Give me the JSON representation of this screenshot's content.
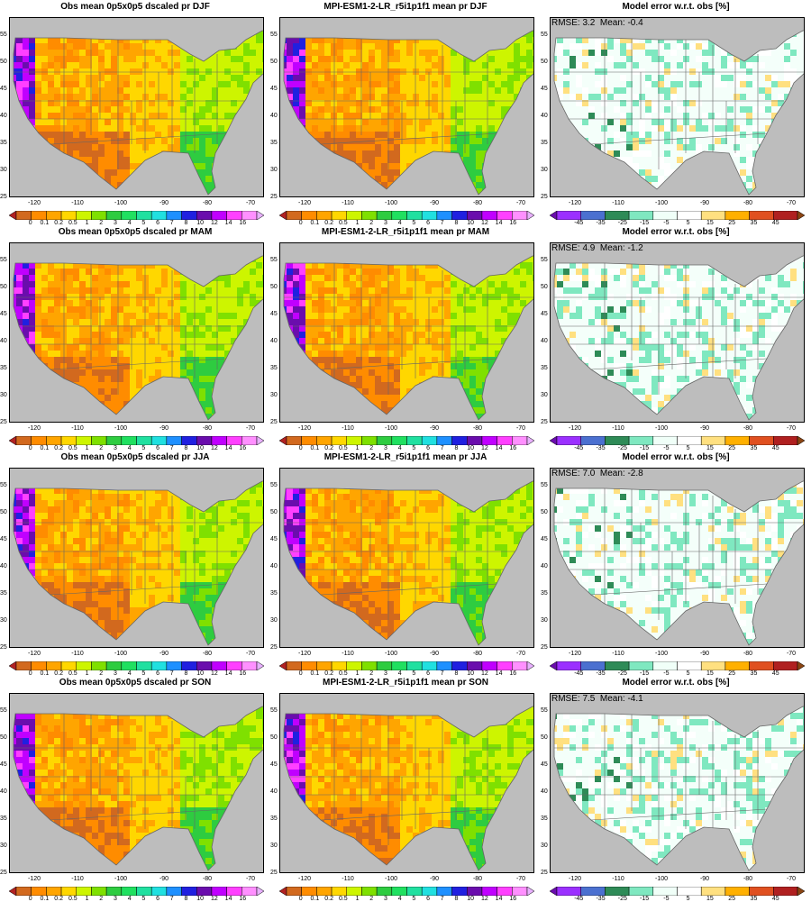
{
  "panels": [
    {
      "row": 0,
      "col": 0,
      "kind": "obs",
      "title": "Obs mean 0p5x0p5 dscaled pr DJF",
      "stats": ""
    },
    {
      "row": 0,
      "col": 1,
      "kind": "model",
      "title": "MPI-ESM1-2-LR_r5i1p1f1 mean pr DJF",
      "stats": ""
    },
    {
      "row": 0,
      "col": 2,
      "kind": "error",
      "title": "Model error w.r.t. obs [%]",
      "stats": "RMSE: 3.2  Mean: -0.4"
    },
    {
      "row": 1,
      "col": 0,
      "kind": "obs",
      "title": "Obs mean 0p5x0p5 dscaled pr MAM",
      "stats": ""
    },
    {
      "row": 1,
      "col": 1,
      "kind": "model",
      "title": "MPI-ESM1-2-LR_r5i1p1f1 mean pr MAM",
      "stats": ""
    },
    {
      "row": 1,
      "col": 2,
      "kind": "error",
      "title": "Model error w.r.t. obs [%]",
      "stats": "RMSE: 4.9  Mean: -1.2"
    },
    {
      "row": 2,
      "col": 0,
      "kind": "obs",
      "title": "Obs mean 0p5x0p5 dscaled pr JJA",
      "stats": ""
    },
    {
      "row": 2,
      "col": 1,
      "kind": "model",
      "title": "MPI-ESM1-2-LR_r5i1p1f1 mean pr JJA",
      "stats": ""
    },
    {
      "row": 2,
      "col": 2,
      "kind": "error",
      "title": "Model error w.r.t. obs [%]",
      "stats": "RMSE: 7.0  Mean: -2.8"
    },
    {
      "row": 3,
      "col": 0,
      "kind": "obs",
      "title": "Obs mean 0p5x0p5 dscaled pr SON",
      "stats": ""
    },
    {
      "row": 3,
      "col": 1,
      "kind": "model",
      "title": "MPI-ESM1-2-LR_r5i1p1f1 mean pr SON",
      "stats": ""
    },
    {
      "row": 3,
      "col": 2,
      "kind": "error",
      "title": "Model error w.r.t. obs [%]",
      "stats": "RMSE: 7.5  Mean: -4.1"
    }
  ],
  "axes": {
    "lat_ticks": [
      "25",
      "30",
      "35",
      "40",
      "45",
      "50",
      "55"
    ],
    "lon_ticks": [
      "-120",
      "-110",
      "-100",
      "-90",
      "-80",
      "-70"
    ]
  },
  "colorbars": {
    "precip": {
      "labels": [
        "0",
        "0.1",
        "0.2",
        "0.5",
        "1",
        "2",
        "3",
        "4",
        "5",
        "6",
        "7",
        "8",
        "10",
        "12",
        "14",
        "16"
      ],
      "colors": [
        "#b22222",
        "#d2691e",
        "#ff8c00",
        "#ffa500",
        "#ffd700",
        "#cdf500",
        "#7fe000",
        "#2ecc40",
        "#20e060",
        "#20e0a0",
        "#20e0e0",
        "#1e90ff",
        "#2020e0",
        "#6a0dad",
        "#c000ff",
        "#ff40ff",
        "#ff90ff",
        "#e8b0ff"
      ]
    },
    "error": {
      "labels": [
        "-45",
        "-35",
        "-25",
        "-15",
        "-5",
        "5",
        "15",
        "25",
        "35",
        "45"
      ],
      "colors": [
        "#6a0dad",
        "#9b30ff",
        "#4b70d0",
        "#2e8b57",
        "#7fe8c0",
        "#f0fff8",
        "#ffffff",
        "#ffe080",
        "#ffb000",
        "#e05020",
        "#b02020",
        "#8b4513"
      ]
    }
  },
  "map": {
    "land_gray": "#bdbdbd",
    "border_color": "#666666"
  }
}
